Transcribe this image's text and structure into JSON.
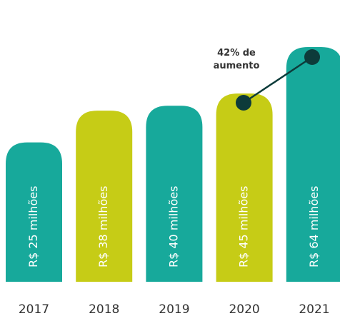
{
  "chart_data": {
    "type": "bar",
    "categories": [
      "2017",
      "2018",
      "2019",
      "2020",
      "2021"
    ],
    "values": [
      25,
      38,
      40,
      45,
      64
    ],
    "value_labels": [
      "R$ 25 milhões",
      "R$ 38 milhões",
      "R$ 40 milhões",
      "R$ 45 milhões",
      "R$ 64 milhões"
    ],
    "colors": [
      "#17a99b",
      "#c6cc16",
      "#17a99b",
      "#c6cc16",
      "#17a99b"
    ],
    "ylim": [
      -32,
      64
    ],
    "annotation": [
      "42% de",
      "aumento"
    ]
  }
}
